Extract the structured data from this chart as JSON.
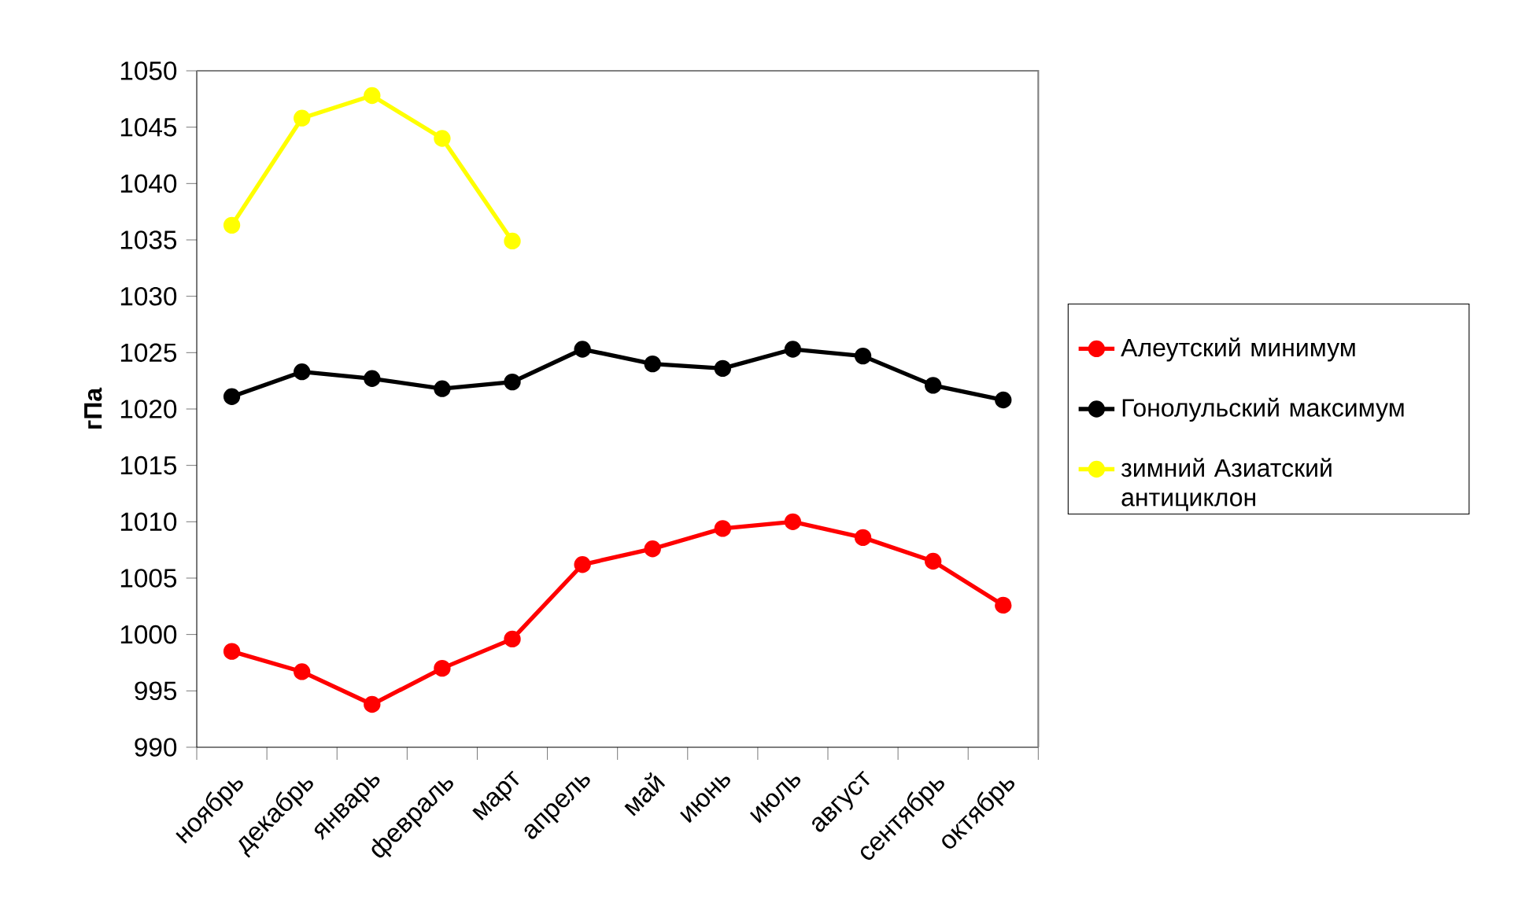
{
  "chart_data": {
    "type": "line",
    "ylabel": "гПа",
    "categories": [
      "ноябрь",
      "декабрь",
      "январь",
      "февраль",
      "март",
      "апрель",
      "май",
      "июнь",
      "июль",
      "август",
      "сентябрь",
      "октябрь"
    ],
    "series": [
      {
        "name": "Алеутский минимум",
        "color": "#ff0000",
        "values": [
          998.5,
          996.7,
          993.8,
          997.0,
          999.6,
          1006.2,
          1007.6,
          1009.4,
          1010.0,
          1008.6,
          1006.5,
          1002.6
        ]
      },
      {
        "name": "Гонолульский максимум",
        "color": "#000000",
        "values": [
          1021.1,
          1023.3,
          1022.7,
          1021.8,
          1022.4,
          1025.3,
          1024.0,
          1023.6,
          1025.3,
          1024.7,
          1022.1,
          1020.8
        ]
      },
      {
        "name": "зимний Азиатский антициклон",
        "color": "#ffff00",
        "values": [
          1036.3,
          1045.8,
          1047.8,
          1044.0,
          1034.9,
          null,
          null,
          null,
          null,
          null,
          null,
          null
        ]
      }
    ],
    "ylim": [
      990,
      1050
    ],
    "yticks": [
      990,
      995,
      1000,
      1005,
      1010,
      1015,
      1020,
      1025,
      1030,
      1035,
      1040,
      1045,
      1050
    ],
    "grid": false,
    "legend": "right",
    "marker": "circle",
    "line_style": "solid"
  }
}
